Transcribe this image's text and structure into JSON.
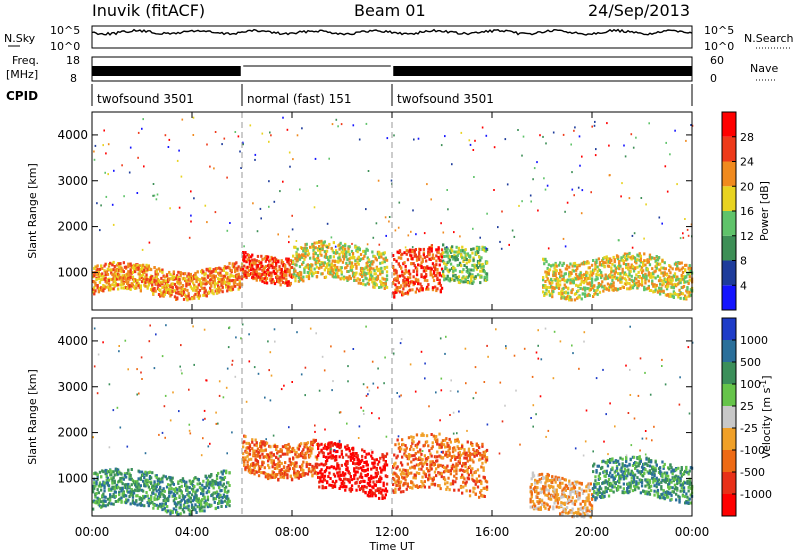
{
  "header": {
    "station": "Inuvik (fitACF)",
    "beam": "Beam 01",
    "date": "24/Sep/2013"
  },
  "strip_labels": {
    "nsky": "N.Sky",
    "nsearch": "N.Search",
    "freq_line1": "Freq.",
    "freq_line2": "[MHz]",
    "nave": "Nave",
    "cpid": "CPID"
  },
  "noise_strip": {
    "left_ticks": [
      "10^5",
      "10^0"
    ],
    "right_ticks": [
      "10^5",
      "10^0"
    ]
  },
  "freq_strip": {
    "left_ticks": [
      "18",
      "8"
    ],
    "right_ticks": [
      "60",
      "0"
    ]
  },
  "cpid_segments": [
    {
      "label": "twofsound 3501",
      "start_h": 0,
      "end_h": 6
    },
    {
      "label": "normal (fast) 151",
      "start_h": 6,
      "end_h": 12
    },
    {
      "label": "twofsound 3501",
      "start_h": 12,
      "end_h": 24
    }
  ],
  "chart_data": [
    {
      "type": "heatmap",
      "name": "power",
      "ylabel": "Slant Range [km]",
      "x_range_hours": [
        0,
        24
      ],
      "y_range_km": [
        180,
        4500
      ],
      "y_ticks": [
        1000,
        2000,
        3000,
        4000
      ],
      "colorbar_label": "Power [dB]",
      "colorbar_ticks": [
        "4",
        "8",
        "12",
        "16",
        "20",
        "24",
        "28"
      ],
      "colorbar_colors": [
        "#1414ff",
        "#1e3c9b",
        "#3d8f56",
        "#5fc36a",
        "#e8d320",
        "#f08a1e",
        "#ee3a1a",
        "#ff0000"
      ],
      "scatter_bands": [
        {
          "start_h": 0.0,
          "end_h": 6.0,
          "center_km": 850,
          "width_km": 300,
          "level": 5
        },
        {
          "start_h": 6.0,
          "end_h": 8.0,
          "center_km": 1150,
          "width_km": 300,
          "level": 6
        },
        {
          "start_h": 8.0,
          "end_h": 11.8,
          "center_km": 1200,
          "width_km": 400,
          "level": 4
        },
        {
          "start_h": 12.0,
          "end_h": 14.0,
          "center_km": 1000,
          "width_km": 500,
          "level": 6
        },
        {
          "start_h": 14.0,
          "end_h": 15.8,
          "center_km": 1300,
          "width_km": 400,
          "level": 3
        },
        {
          "start_h": 18.0,
          "end_h": 24.0,
          "center_km": 950,
          "width_km": 400,
          "level": 4
        }
      ]
    },
    {
      "type": "heatmap",
      "name": "velocity",
      "ylabel": "Slant Range [km]",
      "xlabel": "Time UT",
      "x_range_hours": [
        0,
        24
      ],
      "y_range_km": [
        180,
        4500
      ],
      "y_ticks": [
        1000,
        2000,
        3000,
        4000
      ],
      "x_ticks": [
        "00:00",
        "04:00",
        "08:00",
        "12:00",
        "16:00",
        "20:00",
        "00:00"
      ],
      "colorbar_label": "Velocity [m s^-1]",
      "colorbar_ticks": [
        "1000",
        "500",
        "100",
        "25",
        "-25",
        "-100",
        "-500",
        "-1000"
      ],
      "colorbar_colors": [
        "#1e3cc8",
        "#2a6f9a",
        "#3b8f5a",
        "#66c44a",
        "#c8c8c8",
        "#f0a028",
        "#ee6a14",
        "#e83018",
        "#ff0000"
      ],
      "scatter_bands": [
        {
          "start_h": 0.0,
          "end_h": 5.5,
          "center_km": 750,
          "width_km": 400,
          "level": 6
        },
        {
          "start_h": 6.0,
          "end_h": 9.0,
          "center_km": 1500,
          "width_km": 400,
          "level": 2
        },
        {
          "start_h": 9.0,
          "end_h": 11.8,
          "center_km": 1200,
          "width_km": 500,
          "level": 0
        },
        {
          "start_h": 12.0,
          "end_h": 15.8,
          "center_km": 1300,
          "width_km": 600,
          "level": 2
        },
        {
          "start_h": 17.5,
          "end_h": 20.0,
          "center_km": 650,
          "width_km": 400,
          "level": 3
        },
        {
          "start_h": 20.0,
          "end_h": 24.0,
          "center_km": 1000,
          "width_km": 400,
          "level": 6
        }
      ]
    }
  ]
}
